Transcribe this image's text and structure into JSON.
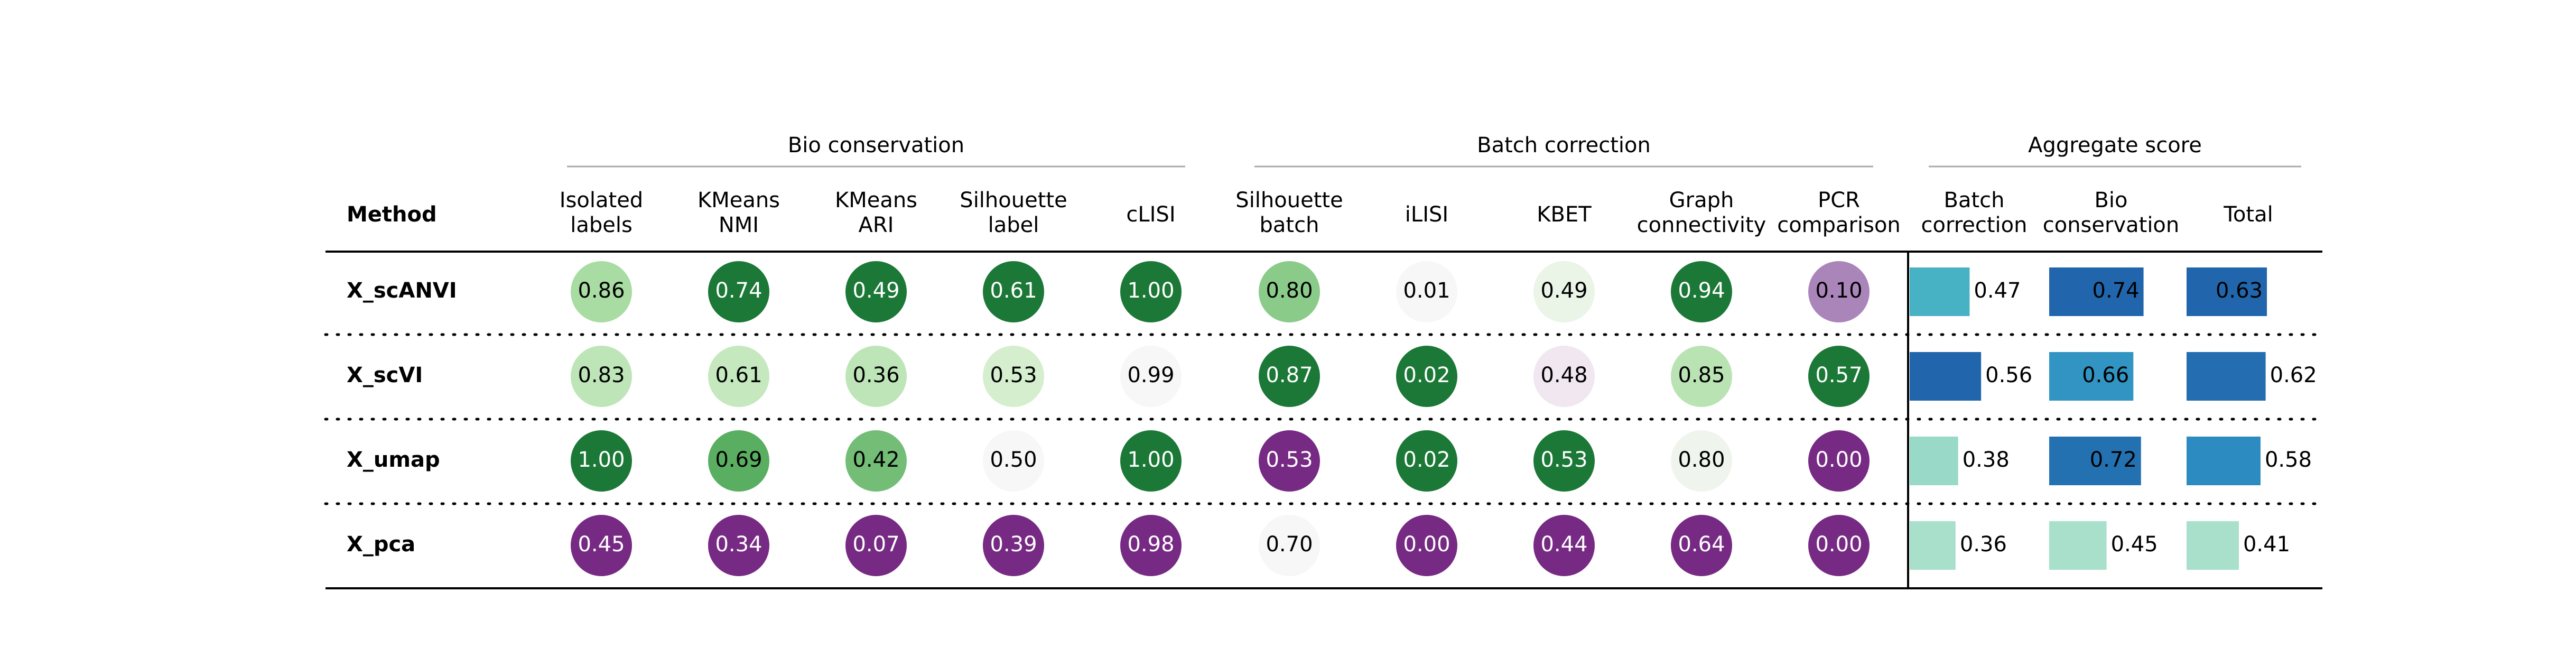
{
  "chart_data": {
    "type": "table",
    "row_header": "Method",
    "groups": [
      {
        "name": "Bio conservation",
        "columns": [
          "isolated",
          "kmeans_nmi",
          "kmeans_ari",
          "sil_label",
          "clisi"
        ]
      },
      {
        "name": "Batch correction",
        "columns": [
          "sil_batch",
          "ilisi",
          "kbet",
          "graph_conn",
          "pcr"
        ]
      },
      {
        "name": "Aggregate score",
        "columns": [
          "agg_batch",
          "agg_bio",
          "agg_total"
        ]
      }
    ],
    "columns": [
      {
        "key": "isolated",
        "label": [
          "Isolated",
          "labels"
        ],
        "kind": "circle",
        "scale": "green-purple"
      },
      {
        "key": "kmeans_nmi",
        "label": [
          "KMeans",
          "NMI"
        ],
        "kind": "circle",
        "scale": "green-purple"
      },
      {
        "key": "kmeans_ari",
        "label": [
          "KMeans",
          "ARI"
        ],
        "kind": "circle",
        "scale": "green-purple"
      },
      {
        "key": "sil_label",
        "label": [
          "Silhouette",
          "label"
        ],
        "kind": "circle",
        "scale": "green-purple"
      },
      {
        "key": "clisi",
        "label": [
          "cLISI"
        ],
        "kind": "circle",
        "scale": "green-purple"
      },
      {
        "key": "sil_batch",
        "label": [
          "Silhouette",
          "batch"
        ],
        "kind": "circle",
        "scale": "green-purple"
      },
      {
        "key": "ilisi",
        "label": [
          "iLISI"
        ],
        "kind": "circle",
        "scale": "green-purple"
      },
      {
        "key": "kbet",
        "label": [
          "KBET"
        ],
        "kind": "circle",
        "scale": "green-purple"
      },
      {
        "key": "graph_conn",
        "label": [
          "Graph",
          "connectivity"
        ],
        "kind": "circle",
        "scale": "green-purple"
      },
      {
        "key": "pcr",
        "label": [
          "PCR",
          "comparison"
        ],
        "kind": "circle",
        "scale": "green-purple"
      },
      {
        "key": "agg_batch",
        "label": [
          "Batch",
          "correction"
        ],
        "kind": "bar",
        "scale": "teal-blue"
      },
      {
        "key": "agg_bio",
        "label": [
          "Bio",
          "conservation"
        ],
        "kind": "bar",
        "scale": "teal-blue"
      },
      {
        "key": "agg_total",
        "label": [
          "Total"
        ],
        "kind": "bar",
        "scale": "teal-blue"
      }
    ],
    "rows": [
      {
        "method": "X_scANVI",
        "values": [
          0.86,
          0.74,
          0.49,
          0.61,
          1.0,
          0.8,
          0.01,
          0.49,
          0.94,
          0.1,
          0.47,
          0.74,
          0.63
        ]
      },
      {
        "method": "X_scVI",
        "values": [
          0.83,
          0.61,
          0.36,
          0.53,
          0.99,
          0.87,
          0.02,
          0.48,
          0.85,
          0.57,
          0.56,
          0.66,
          0.62
        ]
      },
      {
        "method": "X_umap",
        "values": [
          1.0,
          0.69,
          0.42,
          0.5,
          1.0,
          0.53,
          0.02,
          0.53,
          0.8,
          0.0,
          0.38,
          0.72,
          0.58
        ]
      },
      {
        "method": "X_pca",
        "values": [
          0.45,
          0.34,
          0.07,
          0.39,
          0.98,
          0.7,
          0.0,
          0.44,
          0.64,
          0.0,
          0.36,
          0.45,
          0.41
        ]
      }
    ],
    "value_format": "0.00",
    "palettes": {
      "green-purple": [
        "#762a83",
        "#9970ab",
        "#c2a5cf",
        "#e7d4e8",
        "#f7f7f7",
        "#d9f0d3",
        "#a6dba0",
        "#5aae61",
        "#1b7837"
      ],
      "teal-blue": [
        "#a8e0cc",
        "#7fd0c0",
        "#4fbbc6",
        "#2d8fc2",
        "#2166ac"
      ]
    }
  }
}
